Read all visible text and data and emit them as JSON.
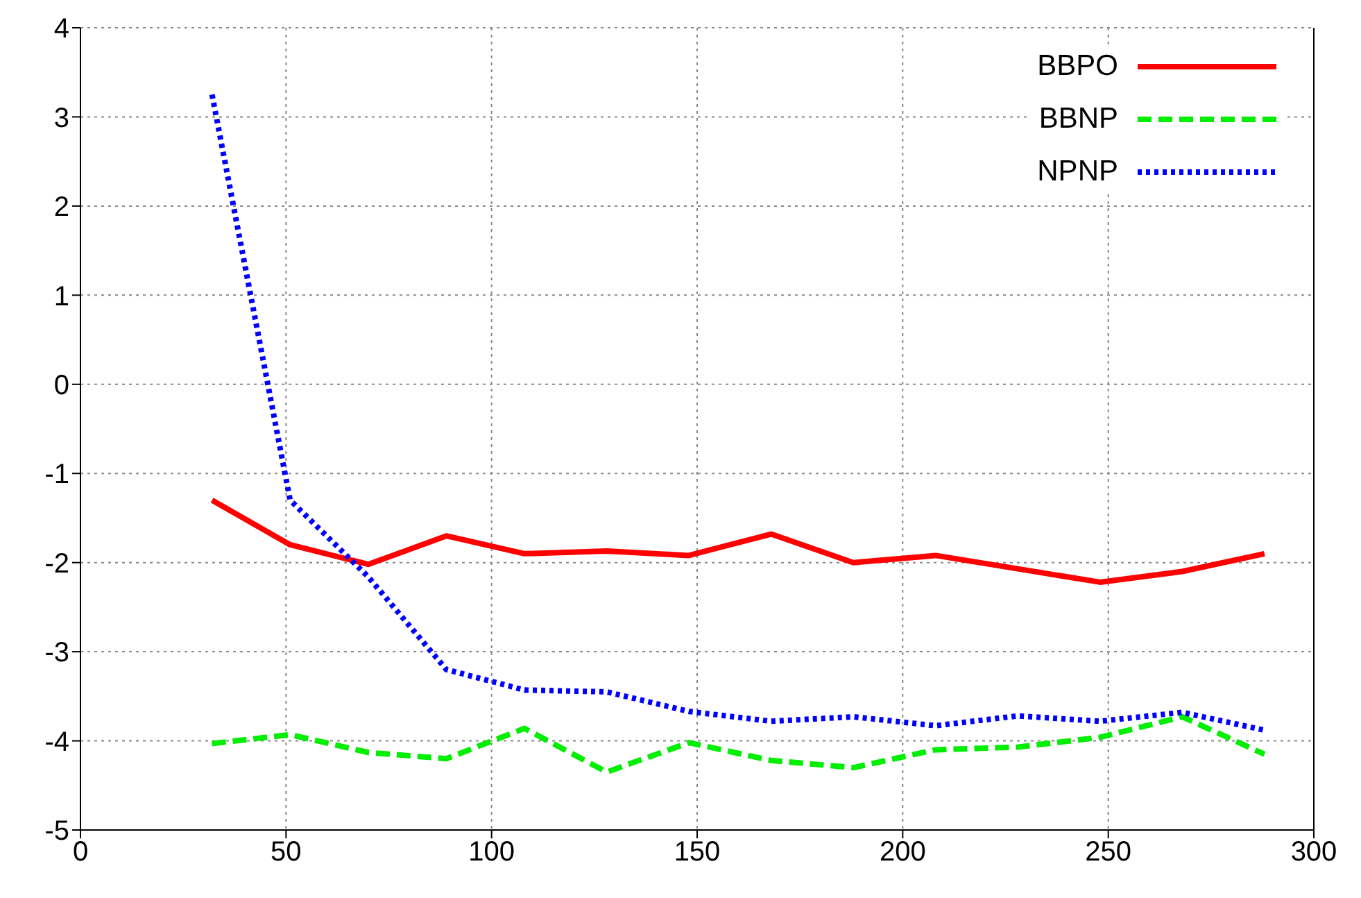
{
  "chart_data": {
    "type": "line",
    "x": [
      32,
      51,
      70,
      89,
      108,
      128,
      148,
      168,
      188,
      208,
      228,
      248,
      268,
      288
    ],
    "series": [
      {
        "name": "BBPO",
        "color": "#ff0000",
        "line_style": "solid",
        "values": [
          -1.3,
          -1.8,
          -2.02,
          -1.7,
          -1.9,
          -1.87,
          -1.92,
          -1.68,
          -2.0,
          -1.92,
          -2.07,
          -2.22,
          -2.1,
          -1.9
        ]
      },
      {
        "name": "BBNP",
        "color": "#00ee00",
        "line_style": "dashed",
        "values": [
          -4.03,
          -3.93,
          -4.13,
          -4.2,
          -3.86,
          -4.35,
          -4.02,
          -4.22,
          -4.3,
          -4.1,
          -4.07,
          -3.96,
          -3.73,
          -4.15
        ]
      },
      {
        "name": "NPNP",
        "color": "#0000ff",
        "line_style": "dotted",
        "values": [
          3.25,
          -1.3,
          -2.16,
          -3.2,
          -3.43,
          -3.45,
          -3.67,
          -3.78,
          -3.73,
          -3.83,
          -3.72,
          -3.78,
          -3.68,
          -3.88
        ]
      }
    ],
    "xlim": [
      0,
      300
    ],
    "xticks": [
      0,
      50,
      100,
      150,
      200,
      250,
      300
    ],
    "ylim": [
      -5,
      4
    ],
    "yticks": [
      -5,
      -4,
      -3,
      -2,
      -1,
      0,
      1,
      2,
      3,
      4
    ],
    "grid": true,
    "legend": "top right",
    "marker": "none"
  }
}
